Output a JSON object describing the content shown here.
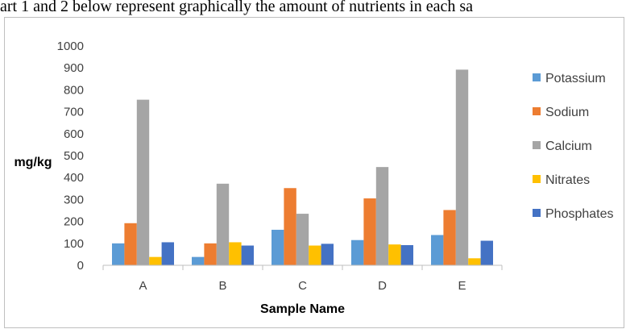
{
  "caption": "art 1 and 2 below represent graphically the amount of nutrients in each sa",
  "chart_data": {
    "type": "bar",
    "title": "",
    "xlabel": "Sample Name",
    "ylabel": "mg/kg",
    "ylim": [
      0,
      1000
    ],
    "yticks": [
      0,
      100,
      200,
      300,
      400,
      500,
      600,
      700,
      800,
      900,
      1000
    ],
    "grid": false,
    "legend_position": "right",
    "categories": [
      "A",
      "B",
      "C",
      "D",
      "E"
    ],
    "series": [
      {
        "name": "Potassium",
        "color": "#5B9BD5",
        "values": [
          100,
          38,
          162,
          115,
          138
        ]
      },
      {
        "name": "Sodium",
        "color": "#ED7D31",
        "values": [
          192,
          100,
          352,
          305,
          252
        ]
      },
      {
        "name": "Calcium",
        "color": "#A5A5A5",
        "values": [
          755,
          372,
          235,
          448,
          892
        ]
      },
      {
        "name": "Nitrates",
        "color": "#FFC000",
        "values": [
          38,
          105,
          90,
          95,
          32
        ]
      },
      {
        "name": "Phosphates",
        "color": "#4472C4",
        "values": [
          105,
          90,
          98,
          92,
          112
        ]
      }
    ]
  }
}
